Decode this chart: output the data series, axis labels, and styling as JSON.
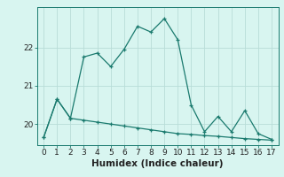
{
  "x": [
    0,
    1,
    2,
    3,
    4,
    5,
    6,
    7,
    8,
    9,
    10,
    11,
    12,
    13,
    14,
    15,
    16,
    17
  ],
  "line1": [
    19.65,
    20.65,
    20.15,
    21.75,
    21.85,
    21.5,
    21.95,
    22.55,
    22.4,
    22.75,
    22.2,
    20.5,
    19.8,
    20.2,
    19.8,
    20.35,
    19.75,
    19.6
  ],
  "line2": [
    19.65,
    20.65,
    20.15,
    20.1,
    20.05,
    20.0,
    19.95,
    19.9,
    19.85,
    19.8,
    19.75,
    19.73,
    19.7,
    19.68,
    19.65,
    19.62,
    19.6,
    19.58
  ],
  "line_color": "#1a7a6e",
  "bg_color": "#d8f5f0",
  "grid_color": "#b8ddd8",
  "xlabel": "Humidex (Indice chaleur)",
  "xlabel_fontsize": 7.5,
  "yticks": [
    20,
    21,
    22
  ],
  "xticks": [
    0,
    1,
    2,
    3,
    4,
    5,
    6,
    7,
    8,
    9,
    10,
    11,
    12,
    13,
    14,
    15,
    16,
    17
  ],
  "xlim": [
    -0.5,
    17.5
  ],
  "ylim": [
    19.45,
    23.05
  ]
}
